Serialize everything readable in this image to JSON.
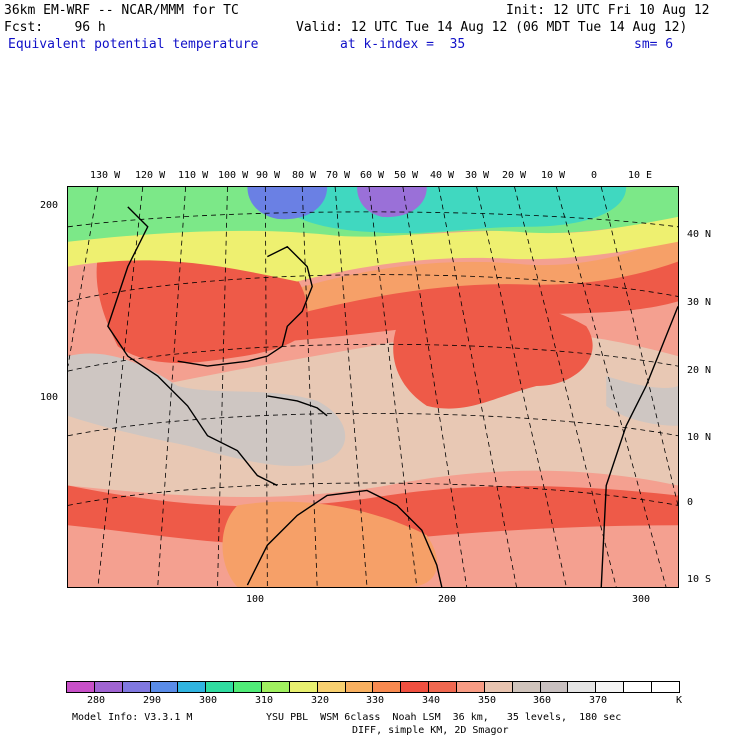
{
  "header": {
    "model": "36km EM-WRF -- NCAR/MMM for TC",
    "init": "Init: 12 UTC Fri 10 Aug 12",
    "fcst": "Fcst:    96 h",
    "valid": "Valid: 12 UTC Tue 14 Aug 12 (06 MDT Tue 14 Aug 12)",
    "field": "Equivalent potential temperature",
    "level": "at k-index =  35",
    "sm": "sm= 6"
  },
  "lon_labels": [
    "130 W",
    "120 W",
    "110 W",
    "100 W",
    "90 W",
    "80 W",
    "70 W",
    "60 W",
    "50 W",
    "40 W",
    "30 W",
    "20 W",
    "10 W",
    "0",
    "10 E"
  ],
  "lat_labels": [
    "40 N",
    "30 N",
    "20 N",
    "10 N",
    "0",
    "10 S"
  ],
  "grid_y_labels": [
    "200",
    "100"
  ],
  "grid_x_labels": [
    "100",
    "200",
    "300"
  ],
  "colorbar": {
    "colors": [
      "#c850c8",
      "#a064d2",
      "#8078e0",
      "#5a8ce8",
      "#30b4e0",
      "#30dca0",
      "#50ec78",
      "#a0f060",
      "#e8f070",
      "#f8d070",
      "#f8b060",
      "#f88a50",
      "#f05040",
      "#f06850",
      "#f89c84",
      "#e8c4b0",
      "#d0c4bc",
      "#c8c0c0",
      "#e4e4e4",
      "#f4f4f4",
      "#ffffff",
      "#ffffff"
    ],
    "labels": [
      "280",
      "290",
      "300",
      "310",
      "320",
      "330",
      "340",
      "350",
      "360",
      "370"
    ],
    "unit": "K"
  },
  "footer": {
    "line1_left": "Model Info: V3.3.1 M",
    "line1_right": "YSU PBL  WSM 6class  Noah LSM  36 km,   35 levels,  180 sec",
    "line2": "DIFF, simple KM, 2D Smagor"
  },
  "map_colors": {
    "warm": "#f4a090",
    "tan": "#e8c8b4",
    "red": "#ee5a48",
    "orange": "#f6a068",
    "gray": "#cec6c2",
    "yellow": "#eef070",
    "green": "#7ce888",
    "cyan": "#40d8c0",
    "blue": "#6a80e4",
    "purple": "#9a70d8"
  }
}
